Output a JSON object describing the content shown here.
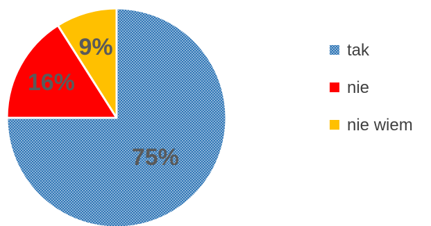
{
  "chart_data": {
    "type": "pie",
    "title": "",
    "slices": [
      {
        "label": "tak",
        "value": 75,
        "display": "75%",
        "color": "#2E75B6",
        "pattern": "dotted"
      },
      {
        "label": "nie",
        "value": 16,
        "display": "16%",
        "color": "#FF0000",
        "pattern": "solid"
      },
      {
        "label": "nie wiem",
        "value": 9,
        "display": "9%",
        "color": "#FFC000",
        "pattern": "solid"
      }
    ],
    "start_angle": "12 o'clock",
    "direction": "clockwise",
    "legend": {
      "position": "right"
    }
  }
}
